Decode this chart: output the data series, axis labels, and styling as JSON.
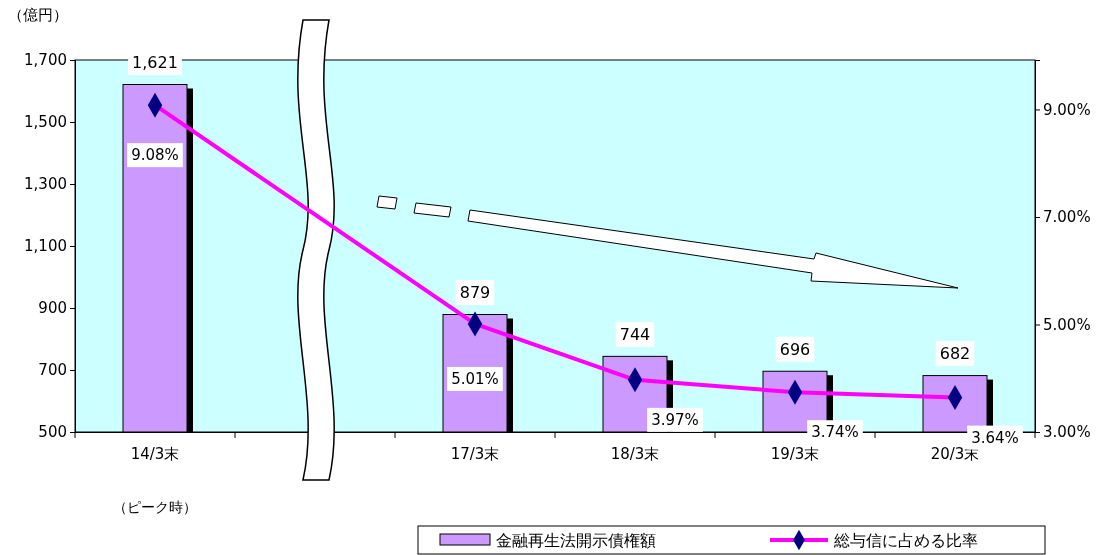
{
  "chart_data": {
    "type": "bar",
    "ylabel": "（億円）",
    "categories": [
      "14/3末",
      null,
      "17/3末",
      "18/3末",
      "19/3末",
      "20/3末"
    ],
    "series": [
      {
        "name": "金融再生法開示債権額",
        "color": "#cc99ff",
        "values": [
          1621,
          null,
          879,
          744,
          696,
          682
        ],
        "value_labels": [
          "1,621",
          null,
          "879",
          "744",
          "696",
          "682"
        ]
      },
      {
        "name": "総与信に占める比率",
        "type": "line",
        "axis": "y2",
        "color": "#ff00ff",
        "marker": "diamond",
        "values": [
          9.08,
          null,
          5.01,
          3.97,
          3.74,
          3.64
        ],
        "value_labels": [
          "9.08%",
          null,
          "5.01%",
          "3.97%",
          "3.74%",
          "3.64%"
        ]
      }
    ],
    "ylim": [
      500,
      1700
    ],
    "yticks": [
      {
        "value": 500,
        "label": "500"
      },
      {
        "value": 700,
        "label": "700"
      },
      {
        "value": 900,
        "label": "900"
      },
      {
        "value": 1100,
        "label": "1,100"
      },
      {
        "value": 1300,
        "label": "1,300"
      },
      {
        "value": 1500,
        "label": "1,500"
      },
      {
        "value": 1700,
        "label": "1,700"
      }
    ],
    "y2lim": [
      3,
      9.92
    ],
    "y2ticks": [
      {
        "value": 3,
        "label": "3.00%"
      },
      {
        "value": 5,
        "label": "5.00%"
      },
      {
        "value": 7,
        "label": "7.00%"
      },
      {
        "value": 9,
        "label": "9.00%"
      }
    ],
    "data_labels": true,
    "grid": false,
    "legend": "bottom right",
    "annotations": [
      "（ピーク時）"
    ]
  }
}
